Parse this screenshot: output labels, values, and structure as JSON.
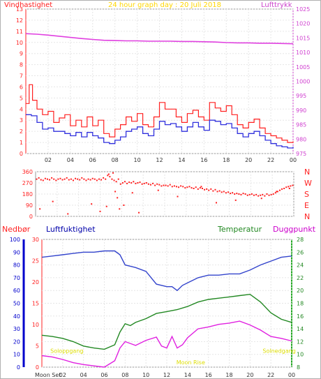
{
  "colors": {
    "wind": "#ff2020",
    "gust_line": "#ff2020",
    "mean_line": "#3030dd",
    "pressure": "#e040e0",
    "title": "#ffd700",
    "direction": "#ff2020",
    "humidity": "#3344cc",
    "temperature": "#228822",
    "dewpoint": "#e020e0",
    "rain": "#0000cc",
    "sun": "#dddd00",
    "axis_left": "#ff2020",
    "axis_right": "#d040d0",
    "frame": "#999999"
  },
  "chart_data": [
    {
      "type": "line",
      "title": "24 hour graph day : 20 Juli 2018",
      "ylabel_left": "Vindhastighet",
      "ylabel_right": "Lufttrykk",
      "x_ticks": [
        "02",
        "04",
        "06",
        "08",
        "10",
        "12",
        "14",
        "16",
        "18",
        "20",
        "22",
        "00"
      ],
      "y_left_ticks": [
        "0",
        "1",
        "2",
        "3",
        "4",
        "5",
        "6",
        "7",
        "8",
        "9",
        "10",
        "11",
        "12",
        "13"
      ],
      "y_left_range": [
        0,
        13
      ],
      "y_right_ticks": [
        "975",
        "980",
        "985",
        "990",
        "995",
        "1000",
        "1005",
        "1010",
        "1015",
        "1020",
        "1025"
      ],
      "y_right_range": [
        975,
        1025
      ],
      "x_range_hours": [
        0,
        24
      ],
      "series": [
        {
          "name": "Lufttrykk",
          "axis": "right",
          "x": [
            0,
            1,
            2,
            3,
            4,
            5,
            6,
            7,
            8,
            9,
            10,
            11,
            12,
            13,
            14,
            15,
            16,
            17,
            18,
            19,
            20,
            21,
            22,
            23,
            24
          ],
          "values": [
            1016.5,
            1016.3,
            1016.0,
            1015.6,
            1015.2,
            1014.8,
            1014.5,
            1014.2,
            1014.1,
            1014.0,
            1014.0,
            1013.9,
            1013.9,
            1013.9,
            1013.8,
            1013.8,
            1013.7,
            1013.6,
            1013.4,
            1013.3,
            1013.3,
            1013.2,
            1013.2,
            1013.1,
            1013.0
          ]
        },
        {
          "name": "gust",
          "axis": "left",
          "x": [
            0,
            0.3,
            0.6,
            1,
            1.5,
            2,
            2.5,
            3,
            3.5,
            4,
            4.5,
            5,
            5.5,
            6,
            6.5,
            7,
            7.5,
            8,
            8.5,
            9,
            9.5,
            10,
            10.5,
            11,
            11.5,
            12,
            12.5,
            13,
            13.5,
            14,
            14.5,
            15,
            15.5,
            16,
            16.5,
            17,
            17.5,
            18,
            18.5,
            19,
            19.5,
            20,
            20.5,
            21,
            21.5,
            22,
            22.5,
            23,
            23.5,
            24
          ],
          "values": [
            4.5,
            6.2,
            4.8,
            4.0,
            3.5,
            3.8,
            2.8,
            3.2,
            3.5,
            2.5,
            3.0,
            2.4,
            3.3,
            2.5,
            3.0,
            1.8,
            1.5,
            2.2,
            2.6,
            3.3,
            2.9,
            3.6,
            2.6,
            2.4,
            3.3,
            4.6,
            4.0,
            4.0,
            3.3,
            2.8,
            3.6,
            3.9,
            3.3,
            3.0,
            4.6,
            4.1,
            3.8,
            4.3,
            3.5,
            2.6,
            2.3,
            2.8,
            3.1,
            2.3,
            1.8,
            1.6,
            1.4,
            1.2,
            1.0,
            1.1
          ]
        },
        {
          "name": "mean",
          "axis": "left",
          "x": [
            0,
            0.5,
            1,
            1.5,
            2,
            2.5,
            3,
            3.5,
            4,
            4.5,
            5,
            5.5,
            6,
            6.5,
            7,
            7.5,
            8,
            8.5,
            9,
            9.5,
            10,
            10.5,
            11,
            11.5,
            12,
            12.5,
            13,
            13.5,
            14,
            14.5,
            15,
            15.5,
            16,
            16.5,
            17,
            17.5,
            18,
            18.5,
            19,
            19.5,
            20,
            20.5,
            21,
            21.5,
            22,
            22.5,
            23,
            23.5,
            24
          ],
          "values": [
            3.5,
            3.4,
            2.8,
            2.2,
            2.3,
            2.0,
            2.0,
            1.8,
            1.6,
            1.9,
            1.5,
            1.9,
            1.6,
            1.4,
            1.0,
            0.9,
            1.2,
            1.5,
            2.0,
            2.2,
            2.4,
            1.8,
            1.6,
            2.2,
            2.9,
            2.6,
            2.7,
            2.4,
            2.0,
            2.4,
            2.8,
            2.4,
            2.1,
            3.0,
            2.9,
            2.6,
            2.7,
            2.3,
            1.8,
            1.5,
            1.8,
            2.0,
            1.6,
            1.2,
            0.9,
            0.7,
            0.6,
            0.5,
            0.6
          ]
        }
      ]
    },
    {
      "type": "scatter",
      "ylabel": "Vindretning",
      "y_ticks_left": [
        "0",
        "90",
        "180",
        "270",
        "360"
      ],
      "y_labels_right": [
        "N",
        "W",
        "S",
        "E",
        "N"
      ],
      "y_range": [
        0,
        360
      ],
      "x_ticks": [
        "02",
        "04",
        "06",
        "08",
        "10",
        "12",
        "14",
        "16",
        "18",
        "20",
        "22",
        "00"
      ],
      "x_range_hours": [
        0,
        24
      ],
      "series": [
        {
          "name": "direction",
          "x": [
            0.1,
            0.3,
            0.5,
            0.7,
            0.9,
            1.1,
            1.3,
            1.5,
            1.7,
            1.9,
            2.1,
            2.3,
            2.5,
            2.7,
            2.9,
            3.1,
            3.3,
            3.5,
            3.7,
            3.9,
            4.1,
            4.3,
            4.5,
            4.7,
            4.9,
            5.1,
            5.3,
            5.5,
            5.7,
            5.9,
            6.1,
            6.3,
            6.5,
            6.7,
            6.9,
            7.1,
            7.3,
            7.5,
            7.7,
            7.9,
            8.1,
            8.3,
            8.5,
            8.7,
            8.9,
            9.1,
            9.3,
            9.5,
            9.7,
            9.9,
            10.1,
            10.3,
            10.5,
            10.7,
            10.9,
            11.1,
            11.3,
            11.5,
            11.7,
            11.9,
            12.1,
            12.3,
            12.5,
            12.7,
            12.9,
            13.1,
            13.3,
            13.5,
            13.7,
            13.9,
            14.1,
            14.3,
            14.5,
            14.7,
            14.9,
            15.1,
            15.3,
            15.5,
            15.7,
            15.9,
            16.1,
            16.3,
            16.5,
            16.7,
            16.9,
            17.1,
            17.3,
            17.5,
            17.7,
            17.9,
            18.1,
            18.3,
            18.5,
            18.7,
            18.9,
            19.1,
            19.3,
            19.5,
            19.7,
            19.9,
            20.1,
            20.3,
            20.5,
            20.7,
            20.9,
            21.1,
            21.3,
            21.5,
            21.7,
            21.9,
            22.1,
            22.3,
            22.5,
            22.7,
            22.9,
            23.1,
            23.3,
            23.5,
            23.7,
            23.9,
            0.4,
            1.6,
            3.0,
            5.2,
            6.0,
            6.6,
            7.4,
            7.8,
            7.6,
            8.2,
            9.6,
            11.4,
            13.2,
            15.4,
            16.8,
            18.6,
            21.0,
            22.4,
            23.6,
            6.8,
            7.2,
            9.0
          ],
          "values": [
            300,
            310,
            295,
            290,
            305,
            300,
            295,
            310,
            300,
            290,
            300,
            305,
            295,
            300,
            310,
            295,
            300,
            290,
            305,
            300,
            295,
            310,
            300,
            290,
            300,
            295,
            305,
            300,
            290,
            300,
            295,
            310,
            300,
            330,
            320,
            300,
            290,
            280,
            300,
            260,
            270,
            280,
            265,
            275,
            270,
            280,
            265,
            270,
            275,
            260,
            265,
            270,
            260,
            255,
            265,
            250,
            260,
            255,
            245,
            250,
            250,
            245,
            255,
            240,
            245,
            240,
            235,
            245,
            240,
            230,
            235,
            240,
            230,
            225,
            235,
            220,
            230,
            225,
            215,
            220,
            210,
            220,
            205,
            215,
            200,
            205,
            195,
            200,
            190,
            195,
            185,
            190,
            180,
            185,
            180,
            175,
            185,
            180,
            170,
            175,
            180,
            170,
            175,
            165,
            170,
            175,
            165,
            180,
            170,
            175,
            180,
            190,
            200,
            210,
            220,
            225,
            235,
            240,
            245,
            250,
            60,
            120,
            20,
            100,
            40,
            80,
            200,
            60,
            150,
            90,
            30,
            210,
            160,
            240,
            110,
            130,
            145,
            200,
            225,
            340,
            350,
            190
          ]
        }
      ]
    },
    {
      "type": "line",
      "legend": [
        "Nedbør",
        "Luftfuktighet",
        "Temperatur",
        "Duggpunkt"
      ],
      "y_left1_ticks": [
        "0",
        "10",
        "20",
        "30",
        "40",
        "50",
        "60",
        "70",
        "80",
        "90",
        "100"
      ],
      "y_left2_ticks": [
        "0",
        "5",
        "10",
        "15",
        "20",
        "25",
        "30"
      ],
      "y_right_ticks": [
        "8",
        "10",
        "12",
        "14",
        "16",
        "18",
        "20",
        "22",
        "24",
        "26",
        "28"
      ],
      "y_left1_range": [
        0,
        100
      ],
      "y_left2_range": [
        0,
        30
      ],
      "y_right_range": [
        8,
        28
      ],
      "x_ticks": [
        "02",
        "04",
        "06",
        "08",
        "10",
        "12",
        "14",
        "16",
        "18",
        "20",
        "22",
        "00"
      ],
      "x_first_label": "Moon Set",
      "x_range_hours": [
        0,
        24
      ],
      "annotations": [
        {
          "text": "Soloppgang",
          "hour": 2.4,
          "level": 10
        },
        {
          "text": "Solnedgang",
          "hour": 22.8,
          "level": 10
        },
        {
          "text": "Moon Rise",
          "hour": 14.3,
          "level": 1
        }
      ],
      "series": [
        {
          "name": "Luftfuktighet",
          "axis": "left1",
          "x": [
            0,
            1,
            2,
            3,
            4,
            5,
            6,
            7,
            7.5,
            8,
            9,
            10,
            11,
            12,
            12.5,
            13,
            13.5,
            14,
            15,
            16,
            17,
            18,
            19,
            20,
            21,
            22,
            23,
            24
          ],
          "values": [
            86,
            87,
            88,
            89,
            90,
            90,
            91,
            91,
            88,
            80,
            78,
            75,
            65,
            63,
            63,
            60,
            64,
            66,
            70,
            72,
            72,
            73,
            73,
            76,
            80,
            83,
            86,
            87
          ]
        },
        {
          "name": "Temperatur",
          "axis": "right",
          "x": [
            0,
            1,
            2,
            3,
            4,
            5,
            6,
            7,
            7.5,
            8,
            8.5,
            9,
            10,
            11,
            12,
            13,
            14,
            15,
            16,
            17,
            18,
            19,
            20,
            21,
            22,
            23,
            24
          ],
          "values": [
            13.0,
            12.8,
            12.5,
            12.0,
            11.3,
            11.0,
            10.8,
            11.5,
            13.5,
            14.8,
            14.5,
            15.0,
            15.6,
            16.4,
            16.7,
            17.0,
            17.5,
            18.2,
            18.6,
            18.8,
            19.0,
            19.2,
            19.4,
            18.2,
            16.5,
            15.5,
            15.0
          ]
        },
        {
          "name": "Duggpunkt",
          "axis": "right",
          "x": [
            0,
            1,
            2,
            3,
            4,
            5,
            6,
            7,
            7.5,
            8,
            9,
            10,
            11,
            11.5,
            12,
            12.5,
            13,
            13.5,
            14,
            15,
            16,
            17,
            18,
            19,
            20,
            21,
            22,
            23,
            24
          ],
          "values": [
            9.8,
            9.6,
            9.2,
            8.7,
            8.4,
            8.2,
            8.0,
            9.0,
            11.0,
            12.0,
            11.4,
            12.2,
            12.7,
            11.3,
            11.0,
            12.8,
            11.0,
            11.5,
            12.6,
            14.0,
            14.3,
            14.7,
            14.9,
            15.2,
            14.6,
            13.8,
            12.8,
            12.5,
            12.1
          ]
        }
      ]
    }
  ]
}
